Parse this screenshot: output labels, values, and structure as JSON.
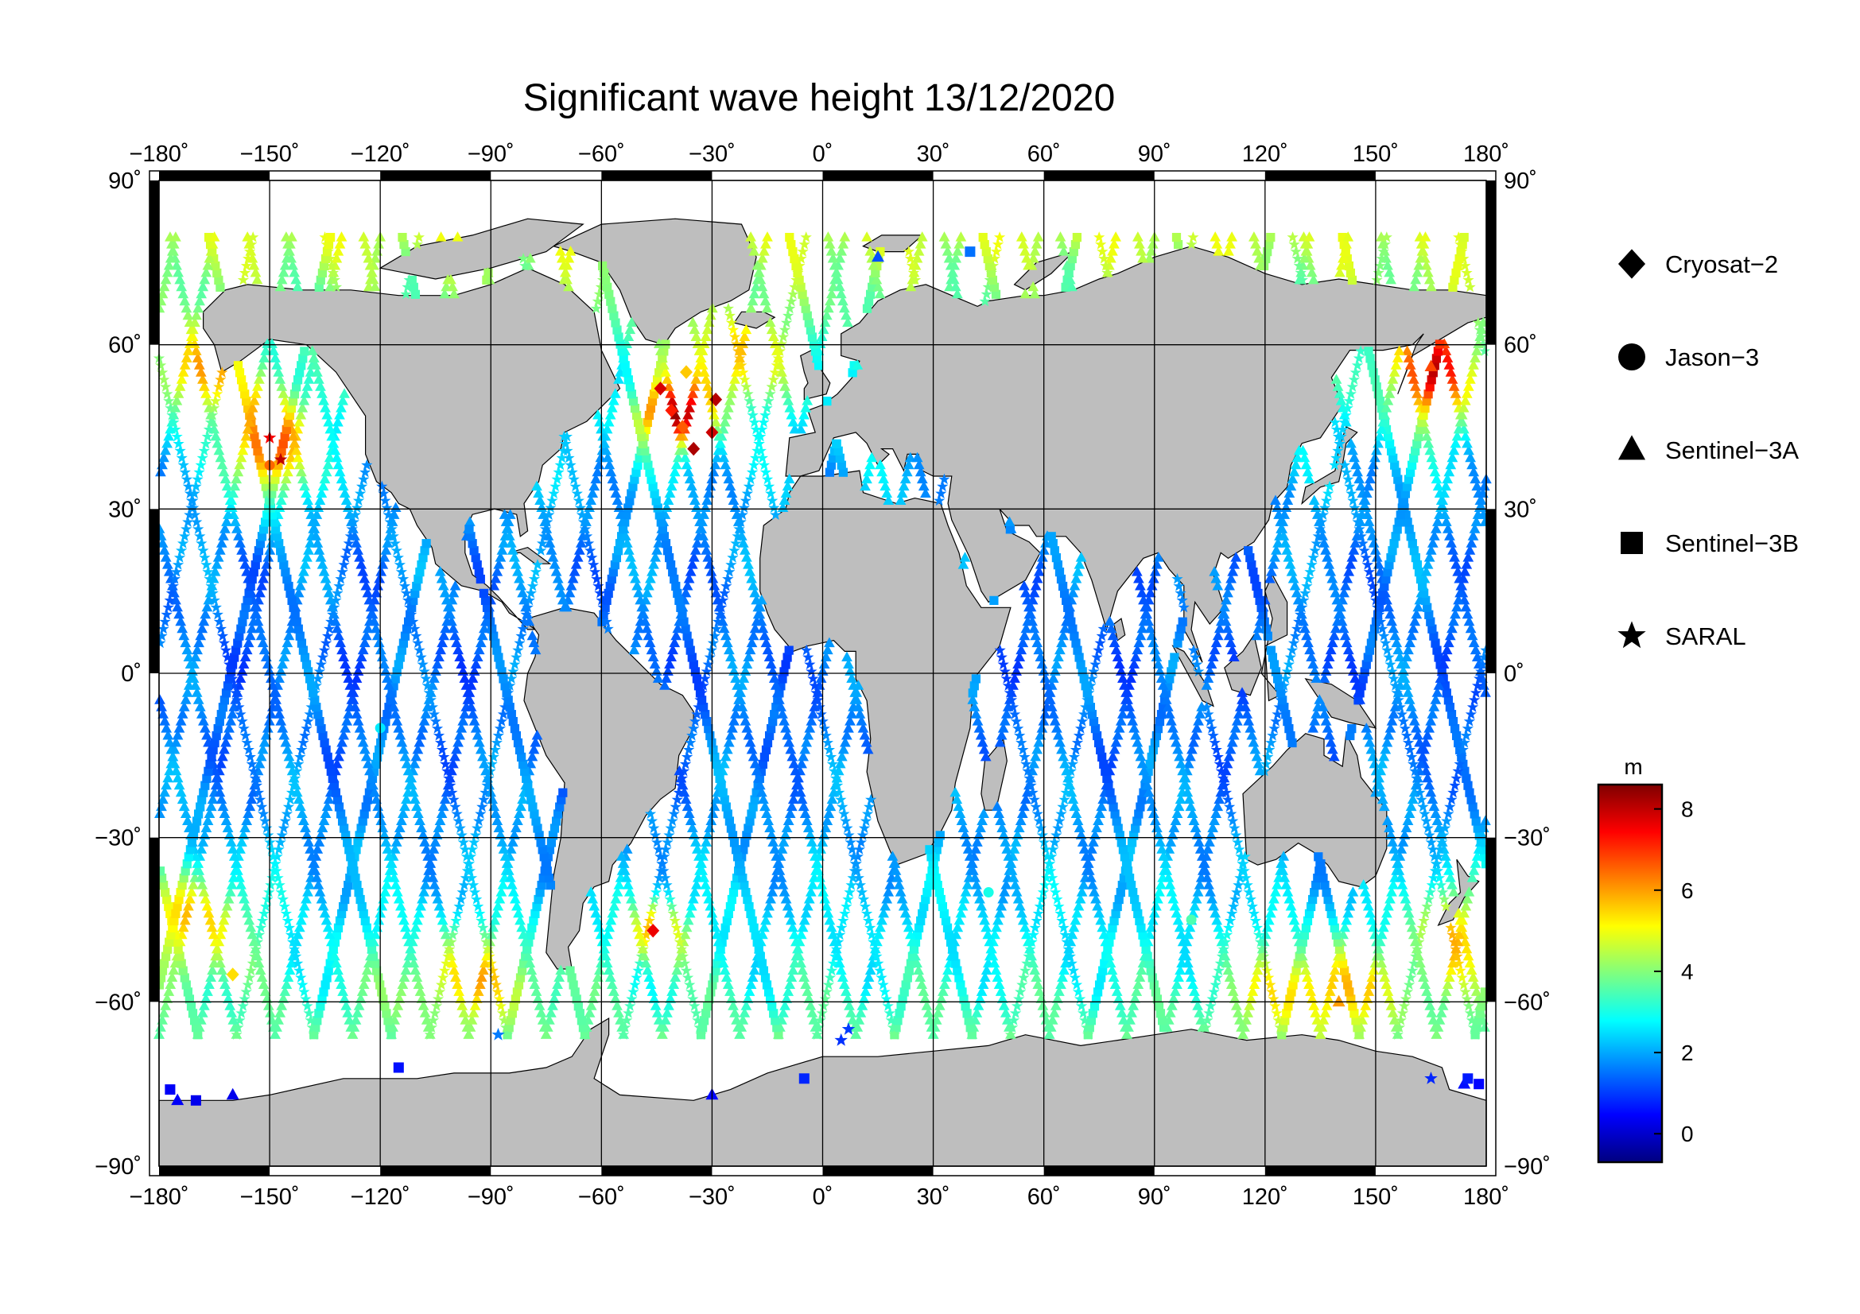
{
  "map": {
    "title": "Significant wave height 13/12/2020",
    "projection": "equirectangular",
    "lon_range": [
      -180,
      180
    ],
    "lat_range": [
      -90,
      90
    ],
    "graticule_lon_step": 30,
    "graticule_lat_step": 30,
    "lon_ticks": [
      {
        "value": -180,
        "label": "−180˚"
      },
      {
        "value": -150,
        "label": "−150˚"
      },
      {
        "value": -120,
        "label": "−120˚"
      },
      {
        "value": -90,
        "label": "−90˚"
      },
      {
        "value": -60,
        "label": "−60˚"
      },
      {
        "value": -30,
        "label": "−30˚"
      },
      {
        "value": 0,
        "label": "0˚"
      },
      {
        "value": 30,
        "label": "30˚"
      },
      {
        "value": 60,
        "label": "60˚"
      },
      {
        "value": 90,
        "label": "90˚"
      },
      {
        "value": 120,
        "label": "120˚"
      },
      {
        "value": 150,
        "label": "150˚"
      },
      {
        "value": 180,
        "label": "180˚"
      }
    ],
    "lat_ticks": [
      {
        "value": 90,
        "label": "90˚"
      },
      {
        "value": 60,
        "label": "60˚"
      },
      {
        "value": 30,
        "label": "30˚"
      },
      {
        "value": 0,
        "label": "0˚"
      },
      {
        "value": -30,
        "label": "−30˚"
      },
      {
        "value": -60,
        "label": "−60˚"
      },
      {
        "value": -90,
        "label": "−90˚"
      }
    ],
    "colors": {
      "land": "#bebebe",
      "ocean": "#ffffff",
      "frame": "#000000",
      "grid": "#000000"
    }
  },
  "legend": {
    "items": [
      {
        "symbol": "diamond",
        "label": "Cryosat−2"
      },
      {
        "symbol": "circle",
        "label": "Jason−3"
      },
      {
        "symbol": "triangle",
        "label": "Sentinel−3A"
      },
      {
        "symbol": "square",
        "label": "Sentinel−3B"
      },
      {
        "symbol": "star",
        "label": "SARAL"
      }
    ]
  },
  "colorbar": {
    "unit": "m",
    "min": -0.7,
    "max": 8.6,
    "ticks": [
      {
        "value": 0,
        "label": "0"
      },
      {
        "value": 2,
        "label": "2"
      },
      {
        "value": 4,
        "label": "4"
      },
      {
        "value": 6,
        "label": "6"
      },
      {
        "value": 8,
        "label": "8"
      }
    ],
    "colormap": [
      "#00007f",
      "#0000ff",
      "#007fff",
      "#00ffff",
      "#7fff7f",
      "#ffff00",
      "#ff7f00",
      "#ff0000",
      "#7f0000"
    ]
  },
  "chart_data": {
    "type": "scatter",
    "title": "Significant wave height 13/12/2020",
    "xlabel": "",
    "ylabel": "",
    "xlim": [
      -180,
      180
    ],
    "ylim": [
      -90,
      90
    ],
    "value_unit": "m",
    "series": [
      {
        "name": "Cryosat−2",
        "marker": "diamond",
        "points": [
          {
            "lon": -44,
            "lat": 52,
            "swh": 7.8
          },
          {
            "lon": -41,
            "lat": 48,
            "swh": 7.2
          },
          {
            "lon": -38,
            "lat": 45,
            "swh": 6.6
          },
          {
            "lon": -35,
            "lat": 41,
            "swh": 8.2
          },
          {
            "lon": -29,
            "lat": 50,
            "swh": 8.1
          },
          {
            "lon": -30,
            "lat": 44,
            "swh": 7.9
          },
          {
            "lon": -37,
            "lat": 55,
            "swh": 5.6
          },
          {
            "lon": -160,
            "lat": -55,
            "swh": 5.4
          },
          {
            "lon": -46,
            "lat": -47,
            "swh": 7.6
          }
        ]
      },
      {
        "name": "Jason−3",
        "marker": "circle",
        "points": [
          {
            "lon": -150,
            "lat": 38,
            "swh": 6.5
          },
          {
            "lon": -120,
            "lat": -10,
            "swh": 2.6
          },
          {
            "lon": 45,
            "lat": -40,
            "swh": 3.0
          },
          {
            "lon": 100,
            "lat": -45,
            "swh": 3.5
          }
        ]
      },
      {
        "name": "Sentinel−3A",
        "marker": "triangle",
        "points": [
          {
            "lon": -175,
            "lat": -78,
            "swh": 0.4
          },
          {
            "lon": -160,
            "lat": -77,
            "swh": 0.3
          },
          {
            "lon": -30,
            "lat": -77,
            "swh": 0.5
          },
          {
            "lon": 15,
            "lat": 76,
            "swh": 1.2
          },
          {
            "lon": 174,
            "lat": -75,
            "swh": 0.6
          },
          {
            "lon": 165,
            "lat": 56,
            "swh": 6.8
          },
          {
            "lon": 140,
            "lat": -60,
            "swh": 6.0
          }
        ]
      },
      {
        "name": "Sentinel−3B",
        "marker": "square",
        "points": [
          {
            "lon": -177,
            "lat": -76,
            "swh": 0.4
          },
          {
            "lon": -170,
            "lat": -78,
            "swh": 0.3
          },
          {
            "lon": -115,
            "lat": -72,
            "swh": 0.6
          },
          {
            "lon": -5,
            "lat": -74,
            "swh": 0.8
          },
          {
            "lon": 175,
            "lat": -74,
            "swh": 0.7
          },
          {
            "lon": 178,
            "lat": -75,
            "swh": 0.5
          },
          {
            "lon": 40,
            "lat": 77,
            "swh": 1.5
          }
        ]
      },
      {
        "name": "SARAL",
        "marker": "star",
        "points": [
          {
            "lon": -150,
            "lat": 43,
            "swh": 7.5
          },
          {
            "lon": -147,
            "lat": 39,
            "swh": 8.0
          },
          {
            "lon": 5,
            "lat": -67,
            "swh": 0.9
          },
          {
            "lon": 7,
            "lat": -65,
            "swh": 1.0
          },
          {
            "lon": 165,
            "lat": -74,
            "swh": 0.8
          },
          {
            "lon": -88,
            "lat": -66,
            "swh": 1.6
          }
        ]
      }
    ]
  }
}
